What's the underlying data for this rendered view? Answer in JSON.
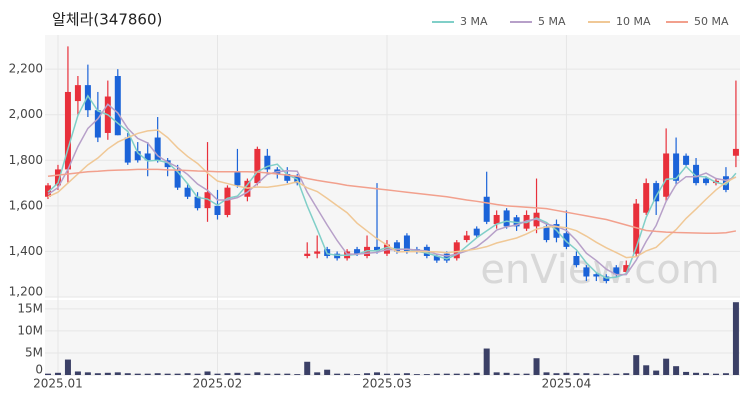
{
  "chart_data": [
    {
      "type": "candlestick",
      "title": "알체라(347860)",
      "watermark": "enView.com",
      "categories": [
        null,
        "2025.01",
        null,
        null,
        null,
        null,
        null,
        null,
        null,
        null,
        null,
        null,
        null,
        null,
        null,
        null,
        null,
        "2025.02",
        null,
        null,
        null,
        null,
        null,
        null,
        null,
        null,
        null,
        null,
        null,
        null,
        null,
        null,
        null,
        null,
        "2025.03",
        null,
        null,
        null,
        null,
        null,
        null,
        null,
        null,
        null,
        null,
        null,
        null,
        null,
        null,
        null,
        null,
        null,
        "2025.04",
        null,
        null,
        null,
        null,
        null,
        null,
        null,
        null,
        null,
        null,
        null,
        null,
        null,
        null,
        null,
        null,
        null
      ],
      "open": [
        1640,
        1690,
        1760,
        2060,
        2130,
        2020,
        1920,
        2170,
        1900,
        1840,
        1830,
        1900,
        1800,
        1760,
        1680,
        1640,
        1590,
        1600,
        1560,
        1750,
        1640,
        1700,
        1820,
        1760,
        1740,
        1730,
        1380,
        1390,
        1410,
        1390,
        1370,
        1410,
        1380,
        1420,
        1390,
        1440,
        1470,
        1410,
        1420,
        1380,
        1390,
        1370,
        1450,
        1500,
        1640,
        1520,
        1580,
        1550,
        1500,
        1510,
        1510,
        1520,
        1480,
        1380,
        1330,
        1300,
        1290,
        1330,
        1310,
        1390,
        1570,
        1700,
        1640,
        1830,
        1820,
        1780,
        1720,
        1700,
        1730,
        1820
      ],
      "high": [
        1700,
        1780,
        2300,
        2170,
        2220,
        2100,
        2150,
        2200,
        1920,
        1880,
        1880,
        1990,
        1810,
        1780,
        1700,
        1660,
        1880,
        1670,
        1690,
        1850,
        1720,
        1860,
        1850,
        1770,
        1770,
        1740,
        1440,
        1470,
        1420,
        1400,
        1410,
        1420,
        1470,
        1700,
        1450,
        1450,
        1480,
        1420,
        1430,
        1390,
        1400,
        1450,
        1490,
        1510,
        1750,
        1580,
        1590,
        1560,
        1580,
        1720,
        1520,
        1540,
        1580,
        1400,
        1340,
        1310,
        1300,
        1340,
        1360,
        1630,
        1720,
        1710,
        1940,
        1900,
        1830,
        1810,
        1730,
        1720,
        1770,
        2150
      ],
      "low": [
        1630,
        1670,
        1700,
        2000,
        1990,
        1880,
        1890,
        1910,
        1780,
        1790,
        1730,
        1790,
        1730,
        1670,
        1630,
        1580,
        1530,
        1540,
        1550,
        1680,
        1620,
        1690,
        1740,
        1720,
        1700,
        1690,
        1370,
        1370,
        1370,
        1360,
        1360,
        1380,
        1370,
        1390,
        1380,
        1390,
        1390,
        1390,
        1370,
        1350,
        1350,
        1360,
        1440,
        1460,
        1520,
        1500,
        1500,
        1490,
        1490,
        1480,
        1440,
        1440,
        1410,
        1330,
        1270,
        1270,
        1260,
        1290,
        1300,
        1380,
        1560,
        1560,
        1620,
        1690,
        1770,
        1690,
        1690,
        1690,
        1660,
        1770
      ],
      "close": [
        1690,
        1760,
        2100,
        2130,
        2020,
        1900,
        2080,
        1910,
        1790,
        1800,
        1800,
        1800,
        1770,
        1680,
        1640,
        1590,
        1660,
        1560,
        1680,
        1690,
        1710,
        1850,
        1760,
        1740,
        1710,
        1700,
        1390,
        1400,
        1380,
        1370,
        1400,
        1390,
        1420,
        1400,
        1430,
        1400,
        1400,
        1400,
        1380,
        1360,
        1360,
        1440,
        1470,
        1470,
        1530,
        1560,
        1510,
        1510,
        1560,
        1570,
        1450,
        1460,
        1420,
        1340,
        1290,
        1290,
        1270,
        1300,
        1340,
        1610,
        1700,
        1620,
        1830,
        1710,
        1780,
        1700,
        1700,
        1710,
        1670,
        1850
      ],
      "up_color": "#e8303b",
      "down_color": "#1b63d8",
      "series": [
        {
          "name": "3 MA",
          "color": "#80cfc8",
          "values": [
            1660,
            1700,
            1850,
            1997,
            2083,
            2017,
            2000,
            1963,
            1927,
            1833,
            1797,
            1800,
            1790,
            1750,
            1697,
            1637,
            1630,
            1603,
            1633,
            1643,
            1693,
            1750,
            1773,
            1783,
            1737,
            1717,
            1600,
            1497,
            1390,
            1383,
            1383,
            1387,
            1403,
            1403,
            1417,
            1410,
            1410,
            1400,
            1393,
            1380,
            1367,
            1387,
            1423,
            1460,
            1490,
            1520,
            1533,
            1527,
            1527,
            1547,
            1527,
            1493,
            1443,
            1407,
            1350,
            1307,
            1283,
            1287,
            1303,
            1417,
            1550,
            1643,
            1717,
            1720,
            1773,
            1730,
            1727,
            1703,
            1693,
            1743
          ]
        },
        {
          "name": "5 MA",
          "color": "#b7a0c9",
          "values": [
            1650,
            1680,
            1760,
            1860,
            1940,
            1982,
            2046,
            2008,
            1940,
            1896,
            1876,
            1820,
            1792,
            1770,
            1738,
            1696,
            1668,
            1626,
            1626,
            1636,
            1660,
            1698,
            1738,
            1750,
            1754,
            1752,
            1660,
            1588,
            1516,
            1448,
            1388,
            1388,
            1392,
            1396,
            1408,
            1408,
            1410,
            1406,
            1402,
            1388,
            1380,
            1388,
            1402,
            1420,
            1454,
            1494,
            1508,
            1516,
            1534,
            1542,
            1520,
            1510,
            1492,
            1448,
            1392,
            1360,
            1322,
            1298,
            1298,
            1362,
            1444,
            1514,
            1620,
            1694,
            1728,
            1728,
            1744,
            1720,
            1712,
            1726
          ]
        },
        {
          "name": "10 MA",
          "color": "#f0c896",
          "values": [
            1640,
            1660,
            1700,
            1740,
            1780,
            1810,
            1850,
            1880,
            1900,
            1918,
            1929,
            1933,
            1900,
            1855,
            1817,
            1786,
            1744,
            1709,
            1698,
            1687,
            1678,
            1683,
            1682,
            1688,
            1695,
            1706,
            1679,
            1663,
            1633,
            1601,
            1570,
            1524,
            1490,
            1456,
            1428,
            1398,
            1399,
            1399,
            1399,
            1398,
            1394,
            1399,
            1404,
            1411,
            1421,
            1437,
            1448,
            1459,
            1477,
            1498,
            1507,
            1509,
            1504,
            1491,
            1467,
            1440,
            1416,
            1395,
            1373,
            1377,
            1402,
            1418,
            1459,
            1496,
            1545,
            1586,
            1629,
            1670,
            1703,
            1727
          ]
        },
        {
          "name": "50 MA",
          "color": "#f2a08d",
          "values": [
            1730,
            1735,
            1740,
            1745,
            1750,
            1752,
            1755,
            1757,
            1758,
            1760,
            1760,
            1760,
            1758,
            1757,
            1755,
            1753,
            1752,
            1750,
            1750,
            1750,
            1750,
            1748,
            1745,
            1740,
            1735,
            1730,
            1720,
            1712,
            1705,
            1698,
            1690,
            1685,
            1680,
            1675,
            1670,
            1665,
            1660,
            1655,
            1650,
            1645,
            1640,
            1633,
            1626,
            1620,
            1613,
            1606,
            1600,
            1597,
            1594,
            1591,
            1588,
            1580,
            1572,
            1564,
            1556,
            1548,
            1540,
            1528,
            1516,
            1504,
            1492,
            1488,
            1485,
            1483,
            1482,
            1481,
            1480,
            1480,
            1482,
            1490
          ]
        }
      ],
      "ylim": [
        1200,
        2350
      ],
      "yticks": [
        {
          "value": 1200,
          "label": "1,200"
        },
        {
          "value": 1400,
          "label": "1,400"
        },
        {
          "value": 1600,
          "label": "1,600"
        },
        {
          "value": 1800,
          "label": "1,800"
        },
        {
          "value": 2000,
          "label": "2,000"
        },
        {
          "value": 2200,
          "label": "2,200"
        }
      ],
      "grid": true,
      "legend": "top-right"
    },
    {
      "type": "bar",
      "color": "#3b4066",
      "values": [
        0.3,
        0.5,
        3.5,
        0.8,
        0.6,
        0.4,
        0.5,
        0.6,
        0.4,
        0.3,
        0.3,
        0.4,
        0.3,
        0.3,
        0.4,
        0.3,
        0.8,
        0.3,
        0.4,
        0.5,
        0.3,
        0.6,
        0.3,
        0.3,
        0.3,
        0.2,
        3.0,
        0.6,
        1.2,
        0.3,
        0.3,
        0.2,
        0.4,
        0.6,
        0.3,
        0.3,
        0.4,
        0.2,
        0.2,
        0.3,
        0.3,
        0.3,
        0.3,
        0.5,
        6.0,
        0.6,
        0.5,
        0.3,
        0.3,
        3.8,
        0.6,
        0.4,
        0.5,
        0.4,
        0.4,
        0.3,
        0.3,
        0.3,
        0.4,
        4.5,
        2.2,
        1.0,
        3.7,
        2.0,
        0.7,
        0.5,
        0.4,
        0.3,
        0.4,
        16.5
      ],
      "ylim": [
        0,
        17
      ],
      "yticks": [
        0,
        {
          "value": 5,
          "label": "5M"
        },
        {
          "value": 10,
          "label": "10M"
        },
        {
          "value": 15,
          "label": "15M"
        }
      ],
      "grid": true
    }
  ]
}
